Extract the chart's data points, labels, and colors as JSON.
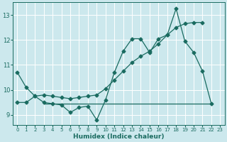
{
  "xlabel": "Humidex (Indice chaleur)",
  "bg_color": "#cce8ed",
  "grid_color": "#ffffff",
  "line_color": "#1a6b60",
  "xlim": [
    -0.5,
    23.5
  ],
  "ylim": [
    8.6,
    13.5
  ],
  "yticks": [
    9,
    10,
    11,
    12,
    13
  ],
  "xticks": [
    0,
    1,
    2,
    3,
    4,
    5,
    6,
    7,
    8,
    9,
    10,
    11,
    12,
    13,
    14,
    15,
    16,
    17,
    18,
    19,
    20,
    21,
    22,
    23
  ],
  "curve1_x": [
    0,
    1,
    2,
    3,
    4,
    5,
    6,
    7,
    8,
    9,
    10,
    11,
    12,
    13,
    14,
    15,
    16,
    17,
    18,
    19,
    20,
    21,
    22
  ],
  "curve1_y": [
    10.7,
    10.1,
    9.75,
    9.5,
    9.45,
    9.4,
    9.1,
    9.3,
    9.35,
    8.8,
    9.6,
    10.7,
    11.55,
    12.05,
    12.05,
    11.5,
    12.05,
    12.2,
    13.25,
    11.95,
    11.5,
    10.75,
    9.45
  ],
  "curve2_x": [
    0,
    1,
    2,
    3,
    4,
    5,
    6,
    7,
    8,
    9,
    10,
    11,
    12,
    13,
    14,
    15,
    16,
    17,
    18,
    19,
    20,
    21
  ],
  "curve2_y": [
    9.5,
    9.5,
    9.75,
    9.8,
    9.75,
    9.7,
    9.65,
    9.7,
    9.75,
    9.8,
    10.05,
    10.4,
    10.75,
    11.1,
    11.35,
    11.55,
    11.85,
    12.2,
    12.5,
    12.65,
    12.7,
    12.7
  ],
  "curve3_x": [
    3,
    22
  ],
  "curve3_y": [
    9.45,
    9.45
  ]
}
